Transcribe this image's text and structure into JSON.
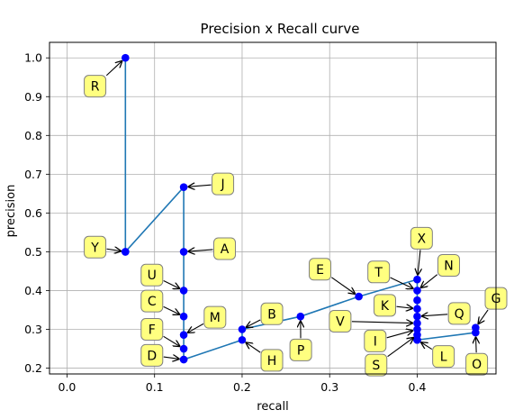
{
  "chart_data": {
    "type": "line",
    "title": "Precision x Recall curve",
    "xlabel": "recall",
    "ylabel": "precision",
    "xlim": [
      -0.02,
      0.49
    ],
    "ylim": [
      0.185,
      1.04
    ],
    "xticks": [
      0.0,
      0.1,
      0.2,
      0.3,
      0.4
    ],
    "xtick_labels": [
      "0.0",
      "0.1",
      "0.2",
      "0.3",
      "0.4"
    ],
    "yticks": [
      0.2,
      0.3,
      0.4,
      0.5,
      0.6,
      0.7,
      0.8,
      0.9,
      1.0
    ],
    "ytick_labels": [
      "0.2",
      "0.3",
      "0.4",
      "0.5",
      "0.6",
      "0.7",
      "0.8",
      "0.9",
      "1.0"
    ],
    "grid": true,
    "line_color": "#1f77b4",
    "marker_color": "#0000ff",
    "label_box_color": "#ffff80",
    "series": [
      {
        "x": [
          0.0667,
          0.0667,
          0.0667,
          0.1333,
          0.1333,
          0.1333,
          0.1333,
          0.1333,
          0.1333,
          0.1333,
          0.1333,
          0.2,
          0.2,
          0.2667,
          0.3333,
          0.4,
          0.4,
          0.4,
          0.4,
          0.4,
          0.4,
          0.4,
          0.4,
          0.4,
          0.4,
          0.4,
          0.4667,
          0.4667
        ],
        "y": [
          1.0,
          0.5,
          0.5,
          0.6667,
          0.5,
          0.4,
          0.3333,
          0.2857,
          0.25,
          0.2222,
          0.2222,
          0.2727,
          0.3,
          0.3333,
          0.3846,
          0.4286,
          0.4,
          0.375,
          0.3529,
          0.3333,
          0.3158,
          0.3,
          0.2857,
          0.2727,
          0.2727,
          0.2727,
          0.2917,
          0.3043
        ]
      }
    ],
    "annotations": [
      {
        "text": "R",
        "x": 0.0667,
        "y": 1.0,
        "tx": 0.032,
        "ty": 0.927
      },
      {
        "text": "Y",
        "x": 0.0667,
        "y": 0.5,
        "tx": 0.032,
        "ty": 0.512
      },
      {
        "text": "J",
        "x": 0.1333,
        "y": 0.6667,
        "tx": 0.178,
        "ty": 0.675
      },
      {
        "text": "A",
        "x": 0.1333,
        "y": 0.5,
        "tx": 0.18,
        "ty": 0.508
      },
      {
        "text": "U",
        "x": 0.1333,
        "y": 0.4,
        "tx": 0.097,
        "ty": 0.44
      },
      {
        "text": "C",
        "x": 0.1333,
        "y": 0.3333,
        "tx": 0.097,
        "ty": 0.373
      },
      {
        "text": "M",
        "x": 0.1333,
        "y": 0.2857,
        "tx": 0.169,
        "ty": 0.331
      },
      {
        "text": "F",
        "x": 0.1333,
        "y": 0.25,
        "tx": 0.097,
        "ty": 0.3
      },
      {
        "text": "D",
        "x": 0.1333,
        "y": 0.2222,
        "tx": 0.097,
        "ty": 0.233
      },
      {
        "text": "B",
        "x": 0.2,
        "y": 0.3,
        "tx": 0.234,
        "ty": 0.34
      },
      {
        "text": "H",
        "x": 0.2,
        "y": 0.2727,
        "tx": 0.234,
        "ty": 0.22
      },
      {
        "text": "P",
        "x": 0.2667,
        "y": 0.3333,
        "tx": 0.267,
        "ty": 0.247
      },
      {
        "text": "E",
        "x": 0.3333,
        "y": 0.3846,
        "tx": 0.289,
        "ty": 0.455
      },
      {
        "text": "X",
        "x": 0.4,
        "y": 0.4286,
        "tx": 0.405,
        "ty": 0.535
      },
      {
        "text": "T",
        "x": 0.4,
        "y": 0.4,
        "tx": 0.356,
        "ty": 0.448
      },
      {
        "text": "N",
        "x": 0.4,
        "y": 0.4,
        "tx": 0.436,
        "ty": 0.465
      },
      {
        "text": "K",
        "x": 0.4,
        "y": 0.3529,
        "tx": 0.363,
        "ty": 0.362
      },
      {
        "text": "Q",
        "x": 0.4,
        "y": 0.3333,
        "tx": 0.448,
        "ty": 0.341
      },
      {
        "text": "V",
        "x": 0.4,
        "y": 0.3158,
        "tx": 0.312,
        "ty": 0.321
      },
      {
        "text": "I",
        "x": 0.4,
        "y": 0.3,
        "tx": 0.352,
        "ty": 0.27
      },
      {
        "text": "S",
        "x": 0.4,
        "y": 0.2857,
        "tx": 0.353,
        "ty": 0.208
      },
      {
        "text": "L",
        "x": 0.4,
        "y": 0.2727,
        "tx": 0.43,
        "ty": 0.23
      },
      {
        "text": "G",
        "x": 0.4667,
        "y": 0.3043,
        "tx": 0.49,
        "ty": 0.38
      },
      {
        "text": "O",
        "x": 0.4667,
        "y": 0.2917,
        "tx": 0.468,
        "ty": 0.21
      }
    ]
  }
}
